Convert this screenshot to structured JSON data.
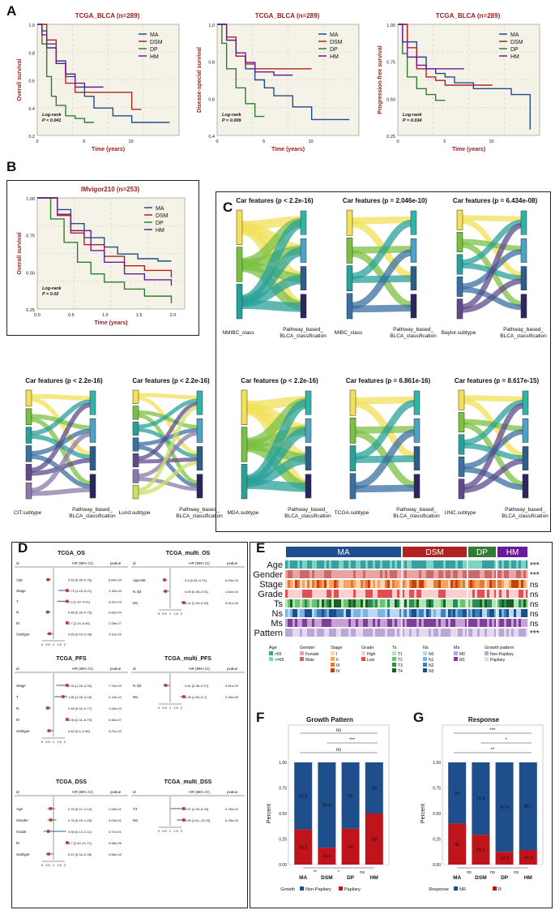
{
  "panel_labels": {
    "A": "A",
    "B": "B",
    "C": "C",
    "D": "D",
    "E": "E",
    "F": "F",
    "G": "G"
  },
  "colors": {
    "MA": "#1f4e8c",
    "DSM": "#b22222",
    "DP": "#2e7d32",
    "HM": "#6a1b9a",
    "panel_bg": "#f5f3e7"
  },
  "km": {
    "legend": [
      "MA",
      "DSM",
      "DP",
      "HM"
    ],
    "logrank": "Log-rank",
    "xlabel": "Time (years)",
    "plots": [
      {
        "title": "TCGA_BLCA (n=289)",
        "ylabel": "Overall survival",
        "pval": "P = 0.041",
        "xticks": [
          "0",
          "5",
          "10"
        ],
        "yticks": [
          "1.0",
          "0.8",
          "0.6",
          "0.4",
          "0.2"
        ]
      },
      {
        "title": "TCGA_BLCA (n=289)",
        "ylabel": "Disease-special survival",
        "pval": "P = 0.009",
        "xticks": [
          "0",
          "5",
          "10"
        ],
        "yticks": [
          "1.0",
          "0.8",
          "0.6",
          "0.4"
        ]
      },
      {
        "title": "TCGA_BLCA (n=289)",
        "ylabel": "Progression-free survival",
        "pval": "P = 0.034",
        "xticks": [
          "0",
          "5",
          "10"
        ],
        "yticks": [
          "1.00",
          "0.75",
          "0.50",
          "0.25"
        ]
      },
      {
        "title": "IMvigor210 (n=253)",
        "ylabel": "Overall survival",
        "pval": "P = 0.02",
        "xticks": [
          "0.0",
          "0.5",
          "1.0",
          "1.5",
          "2.0"
        ],
        "yticks": [
          "1.00",
          "0.75",
          "0.50",
          "0.25"
        ]
      }
    ]
  },
  "sankey": {
    "target": "Pathway_based_ BLCA_classification",
    "plots": [
      {
        "title": "Car features (p < 2.2e-16)",
        "source": "NMIBC_class"
      },
      {
        "title": "Car features (p = 2.046e-10)",
        "source": "MIBC_class"
      },
      {
        "title": "Car features (p =  6.434e-08)",
        "source": "Baylor.subtype"
      },
      {
        "title": "Car features (p < 2.2e-16)",
        "source": "CIT.subtype"
      },
      {
        "title": "Car features (p < 2.2e-16)",
        "source": "Lund.subtype"
      },
      {
        "title": "Car features (p < 2.2e-16)",
        "source": "MDA.subtype"
      },
      {
        "title": "Car features (p = 6.861e-16)",
        "source": "TCGA.subtype"
      },
      {
        "title": "Car features (p = 8.617e-15)",
        "source": "UNC.subtype"
      }
    ]
  },
  "forest": {
    "col_id": "id",
    "col_hr": "HR (95% CI)",
    "col_p": "pvalue",
    "plots": [
      {
        "title": "TCGA_OS",
        "rows": [
          {
            "id": "Age",
            "hr": "0.52 [0.35–0.76]",
            "p": "8.64e-04",
            "est": 0.52,
            "lo": 0.35,
            "hi": 0.76
          },
          {
            "id": "Stage",
            "hr": "2.73 [1.43–5.21]",
            "p": "2.32e-03",
            "est": 2.73,
            "lo": 1.43,
            "hi": 5.21
          },
          {
            "id": "T",
            "hr": "2.3 [1.32–4.01]",
            "p": "3.31e-03",
            "est": 2.3,
            "lo": 1.32,
            "hi": 4.01
          },
          {
            "id": "N",
            "hr": "0.48 [0.33–0.75]",
            "p": "6.82e-04",
            "est": 0.48,
            "lo": 0.33,
            "hi": 0.75
          },
          {
            "id": "M",
            "hr": "3.7 [2.29–6.06]",
            "p": "2.08e-07",
            "est": 3.7,
            "lo": 2.29,
            "hi": 6.06
          },
          {
            "id": "Subtype",
            "hr": "0.65 [0.43–0.98]",
            "p": "4.10e-02",
            "est": 0.65,
            "lo": 0.43,
            "hi": 0.98
          }
        ]
      },
      {
        "title": "TCGA_multi_OS",
        "rows": [
          {
            "id": "Age>65",
            "hr": "0.5 [0.34–0.74]",
            "p": "6.03e-04",
            "est": 0.5,
            "lo": 0.34,
            "hi": 0.74
          },
          {
            "id": "N 3|4",
            "hr": "0.59 [0.38–0.91]",
            "p": "1.64e-02",
            "est": 0.59,
            "lo": 0.38,
            "hi": 0.91
          },
          {
            "id": "M1",
            "hr": "3.21 [1.94–5.32]",
            "p": "5.91e-06",
            "est": 3.21,
            "lo": 1.94,
            "hi": 5.32
          }
        ]
      },
      {
        "title": "TCGA_PFS",
        "rows": [
          {
            "id": "Stage",
            "hr": "2.33 [1.25–4.33]",
            "p": "7.74e-03",
            "est": 2.33,
            "lo": 1.25,
            "hi": 4.33
          },
          {
            "id": "T",
            "hr": "1.85 [1.09–3.15]",
            "p": "2.19e-02",
            "est": 1.85,
            "lo": 1.09,
            "hi": 3.15
          },
          {
            "id": "N",
            "hr": "0.49 [0.32–0.77]",
            "p": "1.93e-03",
            "est": 0.49,
            "lo": 0.32,
            "hi": 0.77
          },
          {
            "id": "M",
            "hr": "3.96 [2.31–6.79]",
            "p": "5.46e-07",
            "est": 3.96,
            "lo": 2.31,
            "hi": 6.79
          },
          {
            "id": "Subtype",
            "hr": "0.62 [0.4–0.96]",
            "p": "3.21e-02",
            "est": 0.62,
            "lo": 0.4,
            "hi": 0.96
          }
        ]
      },
      {
        "title": "TCGA_multi_PFS",
        "rows": [
          {
            "id": "N 3|4",
            "hr": "0.61 [0.38–0.97]",
            "p": "3.61e-02",
            "est": 0.61,
            "lo": 0.38,
            "hi": 0.97
          },
          {
            "id": "M1",
            "hr": "3.28 [1.89–5.7]",
            "p": "2.39e-05",
            "est": 3.28,
            "lo": 1.89,
            "hi": 5.7
          }
        ]
      },
      {
        "title": "TCGA_DSS",
        "rows": [
          {
            "id": "Age",
            "hr": "0.75 [0.47–1.13]",
            "p": "1.59e-01",
            "est": 0.75,
            "lo": 0.47,
            "hi": 1.13
          },
          {
            "id": "Gender",
            "hr": "0.76 [0.49–1.25]",
            "p": "3.03e-01",
            "est": 0.76,
            "lo": 0.49,
            "hi": 1.25
          },
          {
            "id": "Grade",
            "hr": "0.55 [0.13–2.11]",
            "p": "3.71e-01",
            "est": 0.55,
            "lo": 0.13,
            "hi": 2.11
          },
          {
            "id": "M",
            "hr": "8.7 [3.49–21.71]",
            "p": "3.58e-06",
            "est": 8.7,
            "lo": 3.49,
            "hi": 21.71
          },
          {
            "id": "Subtype",
            "hr": "0.57 [0.34–0.96]",
            "p": "3.58e-02",
            "est": 0.57,
            "lo": 0.34,
            "hi": 0.96
          }
        ]
      },
      {
        "title": "TCGA_multi_DSS",
        "rows": [
          {
            "id": "T3",
            "hr": "2.57 [1.05–6.29]",
            "p": "3.78e-02",
            "est": 2.57,
            "lo": 1.05,
            "hi": 6.29
          },
          {
            "id": "M1",
            "hr": "5.55 [1.61–19.23]",
            "p": "6.78e-03",
            "est": 5.55,
            "lo": 1.61,
            "hi": 19.23
          }
        ]
      }
    ],
    "axis_ticks": [
      "0",
      "0.5",
      "1",
      "1.5",
      "2"
    ]
  },
  "heatmap": {
    "groups": [
      "MA",
      "DSM",
      "DP",
      "HM"
    ],
    "rows": [
      {
        "name": "Age",
        "sig": "***"
      },
      {
        "name": "Gender",
        "sig": "***"
      },
      {
        "name": "Stage",
        "sig": "ns"
      },
      {
        "name": "Grade",
        "sig": "ns"
      },
      {
        "name": "Ts",
        "sig": "ns"
      },
      {
        "name": "Ns",
        "sig": "ns"
      },
      {
        "name": "Ms",
        "sig": "ns"
      },
      {
        "name": "Pattern",
        "sig": "***"
      }
    ],
    "legend": [
      {
        "title": "Age",
        "items": [
          ">65",
          "<=65"
        ]
      },
      {
        "title": "Gender",
        "items": [
          "Female",
          "Male"
        ]
      },
      {
        "title": "Stage",
        "items": [
          "I",
          "II",
          "III",
          "IV"
        ]
      },
      {
        "title": "Grade",
        "items": [
          "High",
          "Low"
        ]
      },
      {
        "title": "Ts",
        "items": [
          "T1",
          "T2",
          "T3",
          "T4"
        ]
      },
      {
        "title": "Ns",
        "items": [
          "N0",
          "N1",
          "N2",
          "N3"
        ]
      },
      {
        "title": "Ms",
        "items": [
          "M0",
          "M1"
        ]
      },
      {
        "title": "Growth pattern",
        "items": [
          "Non-Papilary",
          "Papilary"
        ]
      }
    ]
  },
  "chart_data": [
    {
      "type": "bar",
      "title": "Growth Pattern",
      "categories": [
        "MA",
        "DSM",
        "DP",
        "HM"
      ],
      "series": [
        {
          "name": "Non-Papilary",
          "values": [
            65.8,
            83.6,
            65,
            50
          ]
        },
        {
          "name": "Papilary",
          "values": [
            34.2,
            16.4,
            35,
            50
          ]
        }
      ],
      "xlabel": "",
      "ylabel": "Percent",
      "ylim": [
        0,
        1
      ],
      "yticks": [
        "0.00",
        "0.25",
        "0.50",
        "0.75",
        "1.00"
      ],
      "legend_title": "Growth",
      "sig_top": [
        "ns",
        "***",
        "ns"
      ],
      "sig_bottom": [
        "**",
        "*",
        "ns"
      ]
    },
    {
      "type": "bar",
      "title": "Response",
      "categories": [
        "MA",
        "DSM",
        "DP",
        "HM"
      ],
      "series": [
        {
          "name": "NR",
          "values": [
            60,
            70.9,
            87.5,
            85.7
          ]
        },
        {
          "name": "R",
          "values": [
            40,
            29.1,
            12.5,
            14.3
          ]
        }
      ],
      "xlabel": "",
      "ylabel": "Percent",
      "ylim": [
        0,
        1
      ],
      "yticks": [
        "0.00",
        "0.25",
        "0.50",
        "0.75",
        "1.00"
      ],
      "legend_title": "Response",
      "sig_top": [
        "***",
        "*",
        "**"
      ],
      "sig_bottom": [
        "ns",
        "ns",
        "ns"
      ]
    }
  ]
}
